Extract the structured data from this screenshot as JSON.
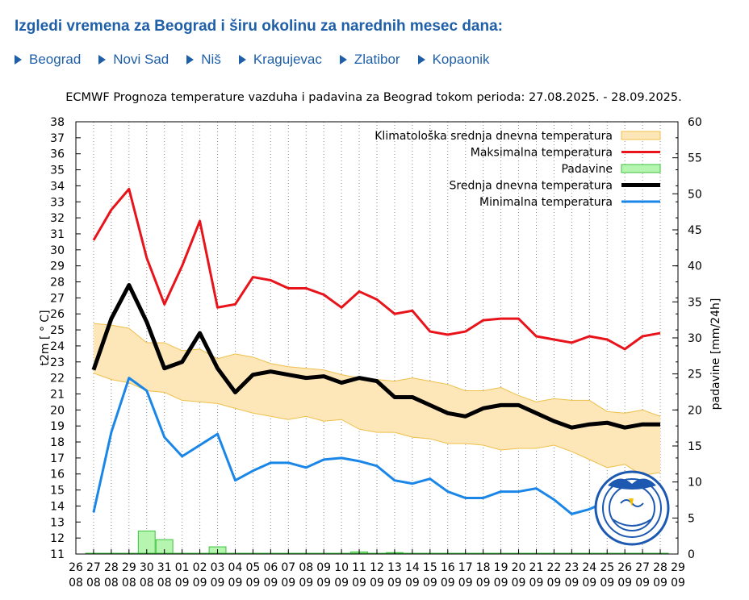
{
  "page": {
    "heading": "Izgledi vremena za Beograd i širu okolinu za narednih mesec dana:",
    "cities": [
      "Beograd",
      "Novi Sad",
      "Niš",
      "Kragujevac",
      "Zlatibor",
      "Kopaonik"
    ]
  },
  "chart_data": {
    "type": "line",
    "title": "ECMWF Prognoza temperature vazduha i padavina za Beograd tokom perioda: 27.08.2025. - 28.09.2025.",
    "ylabel": "t2m [ ° C]",
    "y2label": "padavine [mm/24h]",
    "ylim": [
      11,
      38
    ],
    "y2lim": [
      0,
      60
    ],
    "y_ticks": [
      11,
      12,
      13,
      14,
      15,
      16,
      17,
      18,
      19,
      20,
      21,
      22,
      23,
      24,
      25,
      26,
      27,
      28,
      29,
      30,
      31,
      32,
      33,
      34,
      35,
      36,
      37,
      38
    ],
    "y2_ticks": [
      0,
      5,
      10,
      15,
      20,
      25,
      30,
      35,
      40,
      45,
      50,
      55,
      60
    ],
    "x_tick_days": [
      "26",
      "27",
      "28",
      "29",
      "30",
      "31",
      "01",
      "02",
      "03",
      "04",
      "05",
      "06",
      "07",
      "08",
      "09",
      "10",
      "11",
      "12",
      "13",
      "14",
      "15",
      "16",
      "17",
      "18",
      "19",
      "20",
      "21",
      "22",
      "23",
      "24",
      "25",
      "26",
      "27",
      "28",
      "29"
    ],
    "x_tick_months": [
      "08",
      "08",
      "08",
      "08",
      "08",
      "08",
      "09",
      "09",
      "09",
      "09",
      "09",
      "09",
      "09",
      "09",
      "09",
      "09",
      "09",
      "09",
      "09",
      "09",
      "09",
      "09",
      "09",
      "09",
      "09",
      "09",
      "09",
      "09",
      "09",
      "09",
      "09",
      "09",
      "09",
      "09",
      "09"
    ],
    "legend_position": "top-right",
    "grid": "vertical dotted",
    "colors": {
      "climate_band_fill": "#fde6b8",
      "climate_band_edge": "#eec04a",
      "max": "#e8131b",
      "mean": "#000000",
      "min": "#1a86e8",
      "precip_fill": "#b6f5b0",
      "precip_edge": "#3cc23c"
    },
    "series": [
      {
        "name": "Klimatološka srednja dnevna temperatura",
        "kind": "band",
        "upper": [
          25.4,
          25.3,
          25.1,
          24.2,
          24.2,
          23.7,
          23.8,
          23.2,
          23.5,
          23.3,
          22.9,
          22.7,
          22.6,
          22.5,
          22.2,
          22.0,
          21.9,
          21.8,
          22.0,
          21.8,
          21.6,
          21.2,
          21.2,
          21.4,
          20.9,
          20.5,
          20.7,
          20.6,
          20.6,
          19.9,
          19.8,
          20.0,
          19.6
        ],
        "lower": [
          22.3,
          21.9,
          21.7,
          21.2,
          21.1,
          20.6,
          20.5,
          20.4,
          20.1,
          19.8,
          19.6,
          19.4,
          19.6,
          19.3,
          19.4,
          18.8,
          18.6,
          18.6,
          18.3,
          18.2,
          17.9,
          17.9,
          17.8,
          17.5,
          17.6,
          17.6,
          17.8,
          17.4,
          16.9,
          16.4,
          16.6,
          15.9,
          16.1
        ]
      },
      {
        "name": "Maksimalna temperatura",
        "kind": "line",
        "values": [
          30.6,
          32.5,
          33.8,
          29.5,
          26.6,
          29.0,
          31.8,
          26.4,
          26.6,
          28.3,
          28.1,
          27.6,
          27.6,
          27.2,
          26.4,
          27.4,
          26.9,
          26.0,
          26.2,
          24.9,
          24.7,
          24.9,
          25.6,
          25.7,
          25.7,
          24.6,
          24.4,
          24.2,
          24.6,
          24.4,
          23.8,
          24.6,
          24.8
        ]
      },
      {
        "name": "Padavine",
        "kind": "bar",
        "axis": "y2",
        "values": [
          0,
          0,
          0,
          3.2,
          2.0,
          0,
          0,
          1.0,
          0,
          0,
          0,
          0,
          0,
          0,
          0,
          0.3,
          0,
          0.2,
          0,
          0,
          0,
          0,
          0,
          0,
          0,
          0,
          0,
          0,
          0,
          0,
          0,
          0,
          0
        ]
      },
      {
        "name": "Srednja dnevna temperatura",
        "kind": "line",
        "values": [
          22.5,
          25.7,
          27.8,
          25.5,
          22.6,
          23.0,
          24.8,
          22.6,
          21.1,
          22.2,
          22.4,
          22.2,
          22.0,
          22.1,
          21.7,
          22.0,
          21.8,
          20.8,
          20.8,
          20.3,
          19.8,
          19.6,
          20.1,
          20.3,
          20.3,
          19.8,
          19.3,
          18.9,
          19.1,
          19.2,
          18.9,
          19.1,
          19.1
        ]
      },
      {
        "name": "Minimalna temperatura",
        "kind": "line",
        "values": [
          13.6,
          18.6,
          22.0,
          21.2,
          18.3,
          17.1,
          17.8,
          18.5,
          15.6,
          16.2,
          16.7,
          16.7,
          16.4,
          16.9,
          17.0,
          16.8,
          16.5,
          15.6,
          15.4,
          15.7,
          14.9,
          14.5,
          14.5,
          14.9,
          14.9,
          15.1,
          14.4,
          13.5,
          13.8,
          14.3,
          14.1,
          13.7,
          13.4
        ]
      }
    ]
  }
}
